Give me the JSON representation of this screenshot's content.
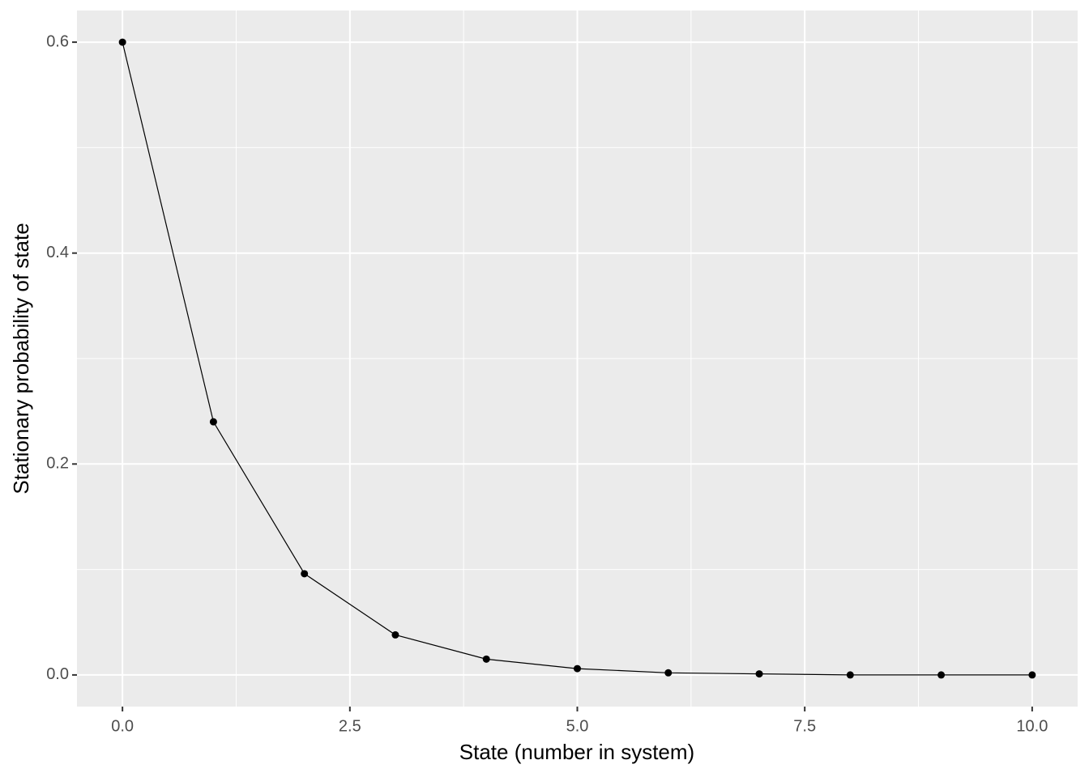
{
  "chart_data": {
    "type": "line",
    "x_label": "State (number in system)",
    "y_label": "Stationary probability of state",
    "x": [
      0,
      1,
      2,
      3,
      4,
      5,
      6,
      7,
      8,
      9,
      10
    ],
    "series": [
      {
        "color": "#000000",
        "values": [
          0.6,
          0.24,
          0.096,
          0.038,
          0.015,
          0.006,
          0.002,
          0.001,
          0,
          0,
          0
        ]
      }
    ],
    "xlim": [
      -0.5,
      10.5
    ],
    "xticks": [
      {
        "value": 0,
        "label": "0.0"
      },
      2.5,
      {
        "value": 5,
        "label": "5.0"
      },
      7.5,
      {
        "value": 10,
        "label": "10.0"
      }
    ],
    "ylim": [
      -0.03,
      0.63
    ],
    "yticks": [
      {
        "value": 0,
        "label": "0.0"
      },
      0.2,
      0.4,
      0.6
    ],
    "grid": true,
    "panel_color": "#EBEBEB"
  }
}
